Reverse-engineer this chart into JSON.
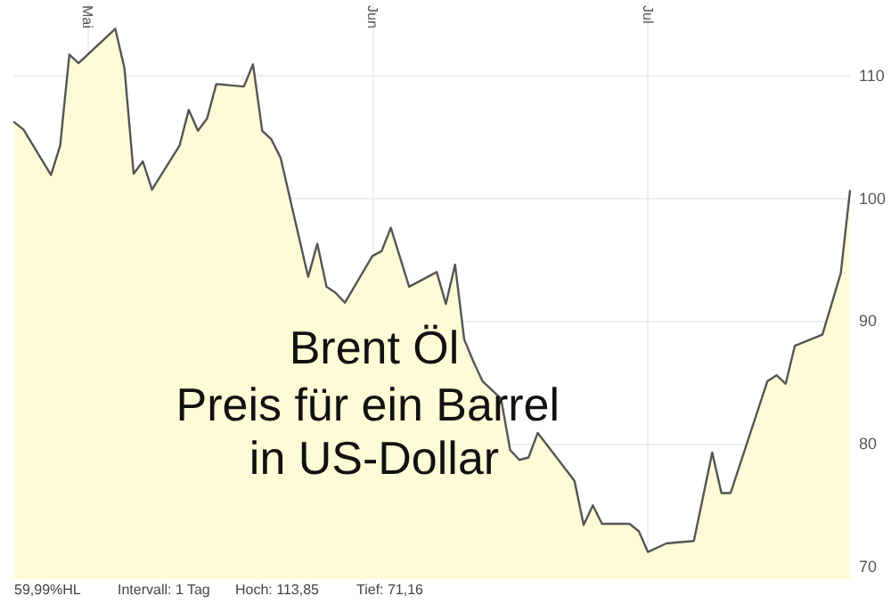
{
  "chart_data": {
    "type": "area",
    "title": "Brent Öl",
    "subtitle": "Preis für ein Barrel in US-Dollar",
    "annotations": [
      "59,99%HL",
      "Intervall: 1 Tag",
      "Hoch: 113,85",
      "Tief: 71,16"
    ],
    "x": [
      "--04-23",
      "--04-24",
      "--04-27",
      "--04-28",
      "--04-29",
      "--04-30",
      "--05-04",
      "--05-05",
      "--05-06",
      "--05-07",
      "--05-08",
      "--05-11",
      "--05-12",
      "--05-13",
      "--05-14",
      "--05-15",
      "--05-18",
      "--05-19",
      "--05-20",
      "--05-21",
      "--05-22",
      "--05-25",
      "--05-26",
      "--05-27",
      "--05-28",
      "--05-29",
      "--06-01",
      "--06-02",
      "--06-03",
      "--06-05",
      "--06-08",
      "--06-09",
      "--06-10",
      "--06-11",
      "--06-12",
      "--06-13",
      "--06-15",
      "--06-16",
      "--06-17",
      "--06-18",
      "--06-19",
      "--06-23",
      "--06-24",
      "--06-25",
      "--06-26",
      "--06-29",
      "--06-30",
      "--07-01",
      "--07-03",
      "--07-06",
      "--07-08",
      "--07-09",
      "--07-10",
      "--07-14",
      "--07-15",
      "--07-16",
      "--07-17",
      "--07-20",
      "--07-21",
      "--07-22",
      "--07-23"
    ],
    "series": [
      {
        "color": "#fffbd6",
        "values": [
          106.2,
          105.6,
          101.9,
          104.3,
          111.7,
          111.0,
          113.8,
          110.6,
          102.0,
          103.0,
          100.7,
          104.3,
          107.2,
          105.5,
          106.5,
          109.3,
          109.1,
          110.9,
          105.5,
          104.8,
          103.3,
          93.6,
          96.3,
          92.8,
          92.3,
          91.5,
          95.3,
          95.7,
          97.6,
          92.8,
          94.0,
          91.4,
          94.6,
          88.5,
          86.7,
          85.1,
          83.7,
          79.5,
          78.7,
          78.9,
          80.9,
          77.0,
          73.4,
          75.0,
          73.5,
          73.5,
          72.9,
          71.2,
          71.9,
          72.1,
          79.3,
          76.0,
          76.0,
          85.1,
          85.6,
          84.9,
          88.0,
          88.9,
          91.4,
          93.9,
          100.6
        ]
      }
    ],
    "xlim": [
      "--04-23",
      "--07-23"
    ],
    "xticks": [
      {
        "value": "--05-01",
        "label": "Mai"
      },
      {
        "value": "--06-01",
        "label": "Jun"
      },
      {
        "value": "--07-01",
        "label": "Jul"
      }
    ],
    "ylim": [
      69,
      116
    ],
    "yticks": [
      70,
      80,
      90,
      100,
      110
    ],
    "grid": true,
    "marker": "none",
    "line_style": "solid"
  }
}
